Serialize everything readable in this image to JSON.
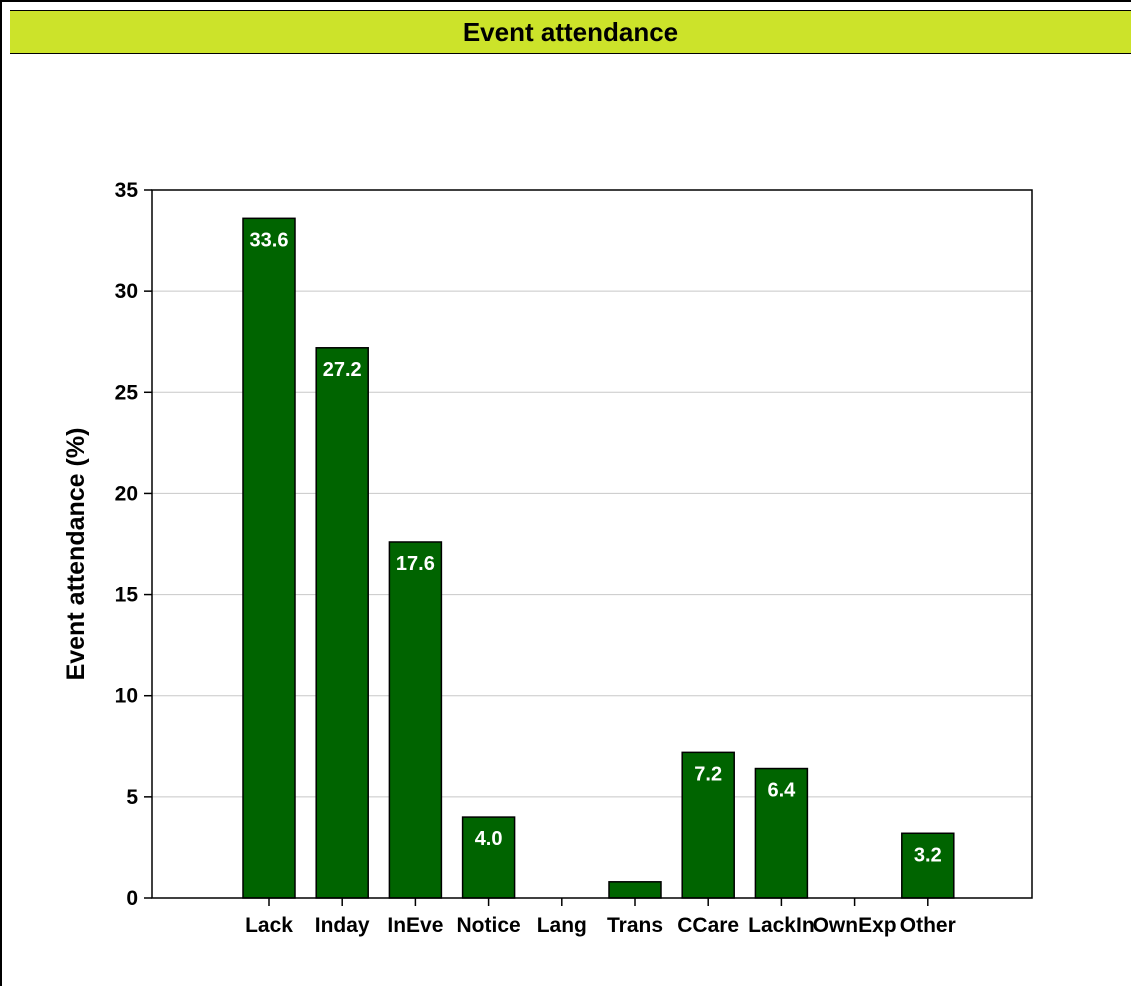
{
  "colors": {
    "title_bar_bg": "#cce32a",
    "bar_fill": "#006400",
    "bar_stroke": "#000000",
    "grid": "#c8c8c8",
    "data_label": "#ffffff"
  },
  "chart_data": {
    "type": "bar",
    "title": "Event attendance",
    "xlabel": "",
    "ylabel": "Event attendance  (%)",
    "ylim": [
      0,
      35
    ],
    "yticks": [
      0,
      5,
      10,
      15,
      20,
      25,
      30,
      35
    ],
    "grid": true,
    "categories": [
      "Lack",
      "Inday",
      "InEve",
      "Notice",
      "Lang",
      "Trans",
      "CCare",
      "LackIn",
      "OwnExp",
      "Other"
    ],
    "values": [
      33.6,
      27.2,
      17.6,
      4.0,
      0,
      0.8,
      7.2,
      6.4,
      0,
      3.2
    ],
    "data_labels": [
      "33.6",
      "27.2",
      "17.6",
      "4.0",
      "",
      "",
      "7.2",
      "6.4",
      "",
      "3.2"
    ]
  }
}
